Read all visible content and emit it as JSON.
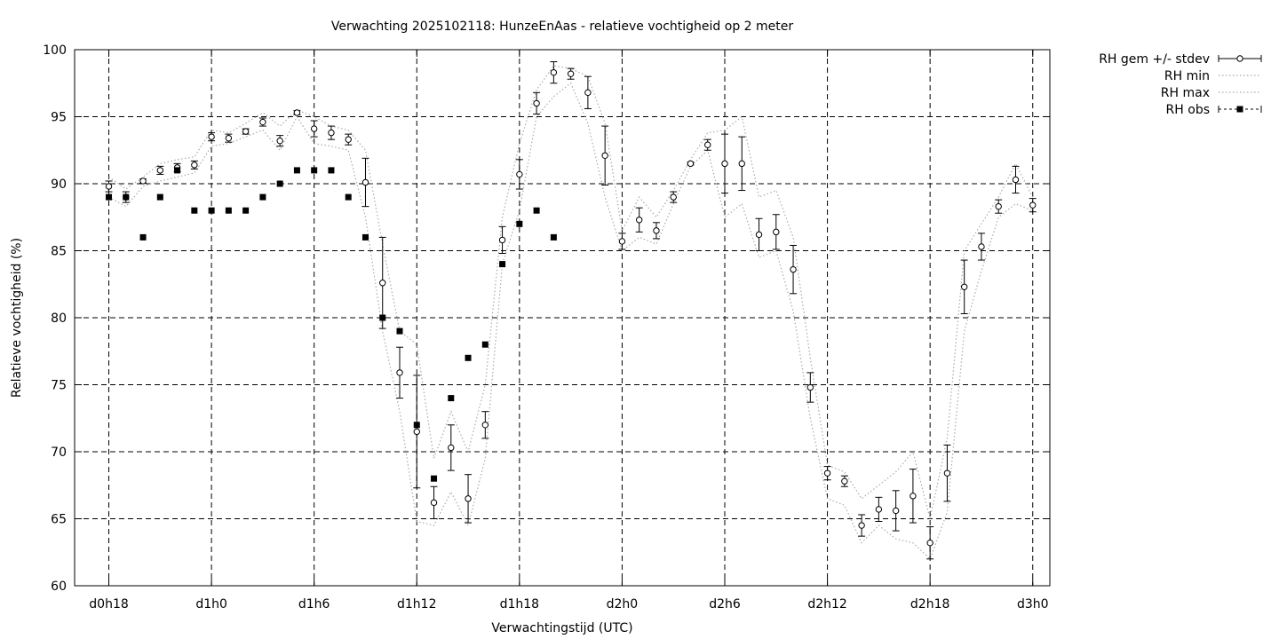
{
  "chart_data": {
    "type": "line",
    "title": "Verwachting 2025102118: HunzeEnAas - relatieve vochtigheid op 2 meter",
    "xlabel": "Verwachtingstijd (UTC)",
    "ylabel": "Relatieve vochtigheid (%)",
    "xlim": [
      -2,
      55
    ],
    "ylim": [
      60,
      100
    ],
    "grid": true,
    "legend_position": "outside-right",
    "x_ticks": [
      {
        "x": 0,
        "label": "d0h18"
      },
      {
        "x": 6,
        "label": "d1h0"
      },
      {
        "x": 12,
        "label": "d1h6"
      },
      {
        "x": 18,
        "label": "d1h12"
      },
      {
        "x": 24,
        "label": "d1h18"
      },
      {
        "x": 30,
        "label": "d2h0"
      },
      {
        "x": 36,
        "label": "d2h6"
      },
      {
        "x": 42,
        "label": "d2h12"
      },
      {
        "x": 48,
        "label": "d2h18"
      },
      {
        "x": 54,
        "label": "d3h0"
      }
    ],
    "y_ticks": [
      60,
      65,
      70,
      75,
      80,
      85,
      90,
      95,
      100
    ],
    "series": [
      {
        "name": "RH gem +/- stdev",
        "style": "points-errorbars",
        "color": "#000000",
        "x": [
          0,
          1,
          2,
          3,
          4,
          5,
          6,
          7,
          8,
          9,
          10,
          11,
          12,
          13,
          14,
          15,
          16,
          17,
          18,
          19,
          20,
          21,
          22,
          23,
          24,
          25,
          26,
          27,
          28,
          29,
          30,
          31,
          32,
          33,
          34,
          35,
          36,
          37,
          38,
          39,
          40,
          41,
          42,
          43,
          44,
          45,
          46,
          47,
          48,
          49,
          50,
          51,
          52,
          53,
          54
        ],
        "y": [
          89.8,
          89.0,
          90.2,
          91.0,
          91.2,
          91.4,
          93.5,
          93.4,
          93.9,
          94.6,
          93.2,
          95.3,
          94.1,
          93.8,
          93.3,
          90.1,
          82.6,
          75.9,
          71.5,
          66.2,
          70.3,
          66.5,
          72.0,
          85.8,
          90.7,
          96.0,
          98.3,
          98.2,
          96.8,
          92.1,
          85.7,
          87.3,
          86.5,
          89.0,
          91.5,
          92.9,
          91.5,
          91.5,
          86.2,
          86.4,
          83.6,
          74.8,
          68.4,
          67.8,
          64.5,
          65.7,
          65.6,
          66.7,
          63.2,
          68.4,
          82.3,
          85.3,
          88.3,
          90.3,
          88.4
        ],
        "stdev": [
          0.4,
          0.4,
          0.15,
          0.3,
          0.3,
          0.3,
          0.3,
          0.3,
          0.2,
          0.3,
          0.4,
          0.15,
          0.6,
          0.5,
          0.4,
          1.8,
          3.4,
          1.9,
          4.2,
          1.2,
          1.7,
          1.8,
          1.0,
          1.0,
          1.1,
          0.8,
          0.8,
          0.4,
          1.2,
          2.2,
          0.6,
          0.9,
          0.6,
          0.4,
          0.1,
          0.4,
          2.2,
          2.0,
          1.2,
          1.3,
          1.8,
          1.1,
          0.5,
          0.4,
          0.8,
          0.9,
          1.5,
          2.0,
          1.2,
          2.1,
          2.0,
          1.0,
          0.5,
          1.0,
          0.5
        ]
      },
      {
        "name": "RH min",
        "style": "dotted-line",
        "color": "#aaaaaa",
        "x": [
          0,
          1,
          2,
          3,
          4,
          5,
          6,
          7,
          8,
          9,
          10,
          11,
          12,
          13,
          14,
          15,
          16,
          17,
          18,
          19,
          20,
          21,
          22,
          23,
          24,
          25,
          26,
          27,
          28,
          29,
          30,
          31,
          32,
          33,
          34,
          35,
          36,
          37,
          38,
          39,
          40,
          41,
          42,
          43,
          44,
          45,
          46,
          47,
          48,
          49,
          50,
          51,
          52,
          53,
          54
        ],
        "y": [
          89.0,
          88.3,
          89.8,
          90.2,
          90.5,
          90.8,
          92.8,
          93.0,
          93.5,
          94.0,
          92.5,
          95.0,
          93.0,
          92.8,
          92.5,
          87.5,
          79.0,
          73.0,
          64.8,
          64.5,
          67.0,
          64.5,
          69.5,
          84.0,
          88.0,
          95.0,
          96.5,
          97.5,
          94.5,
          89.0,
          85.0,
          86.0,
          85.5,
          88.5,
          91.3,
          92.5,
          87.5,
          88.5,
          84.5,
          85.0,
          80.5,
          72.5,
          66.5,
          66.0,
          63.2,
          64.5,
          63.5,
          63.2,
          62.0,
          65.5,
          79.0,
          83.5,
          87.5,
          88.5,
          88.0
        ]
      },
      {
        "name": "RH max",
        "style": "dotted-line",
        "color": "#aaaaaa",
        "x": [
          0,
          1,
          2,
          3,
          4,
          5,
          6,
          7,
          8,
          9,
          10,
          11,
          12,
          13,
          14,
          15,
          16,
          17,
          18,
          19,
          20,
          21,
          22,
          23,
          24,
          25,
          26,
          27,
          28,
          29,
          30,
          31,
          32,
          33,
          34,
          35,
          36,
          37,
          38,
          39,
          40,
          41,
          42,
          43,
          44,
          45,
          46,
          47,
          48,
          49,
          50,
          51,
          52,
          53,
          54
        ],
        "y": [
          90.5,
          89.6,
          90.5,
          91.5,
          91.8,
          92.0,
          94.0,
          93.8,
          94.5,
          95.3,
          94.3,
          95.5,
          95.0,
          94.3,
          94.0,
          92.5,
          85.5,
          79.0,
          78.0,
          69.5,
          73.0,
          70.0,
          75.0,
          87.5,
          93.0,
          97.0,
          98.8,
          98.6,
          98.0,
          94.5,
          86.5,
          89.0,
          87.5,
          89.5,
          91.8,
          93.8,
          94.0,
          95.0,
          89.0,
          89.5,
          86.0,
          77.0,
          69.0,
          68.5,
          66.5,
          67.5,
          68.5,
          70.0,
          65.0,
          71.0,
          85.0,
          87.0,
          89.0,
          91.5,
          89.0
        ]
      },
      {
        "name": "RH obs",
        "style": "filled-squares",
        "color": "#000000",
        "x": [
          0,
          1,
          2,
          3,
          4,
          5,
          6,
          7,
          8,
          9,
          10,
          11,
          12,
          13,
          14,
          15,
          16,
          17,
          18,
          19,
          20,
          21,
          22,
          23,
          24,
          25,
          26
        ],
        "y": [
          89,
          89,
          86,
          89,
          91,
          88,
          88,
          88,
          88,
          89,
          90,
          91,
          91,
          91,
          89,
          86,
          80,
          79,
          72,
          68,
          74,
          77,
          78,
          84,
          87,
          88,
          86
        ]
      }
    ]
  }
}
